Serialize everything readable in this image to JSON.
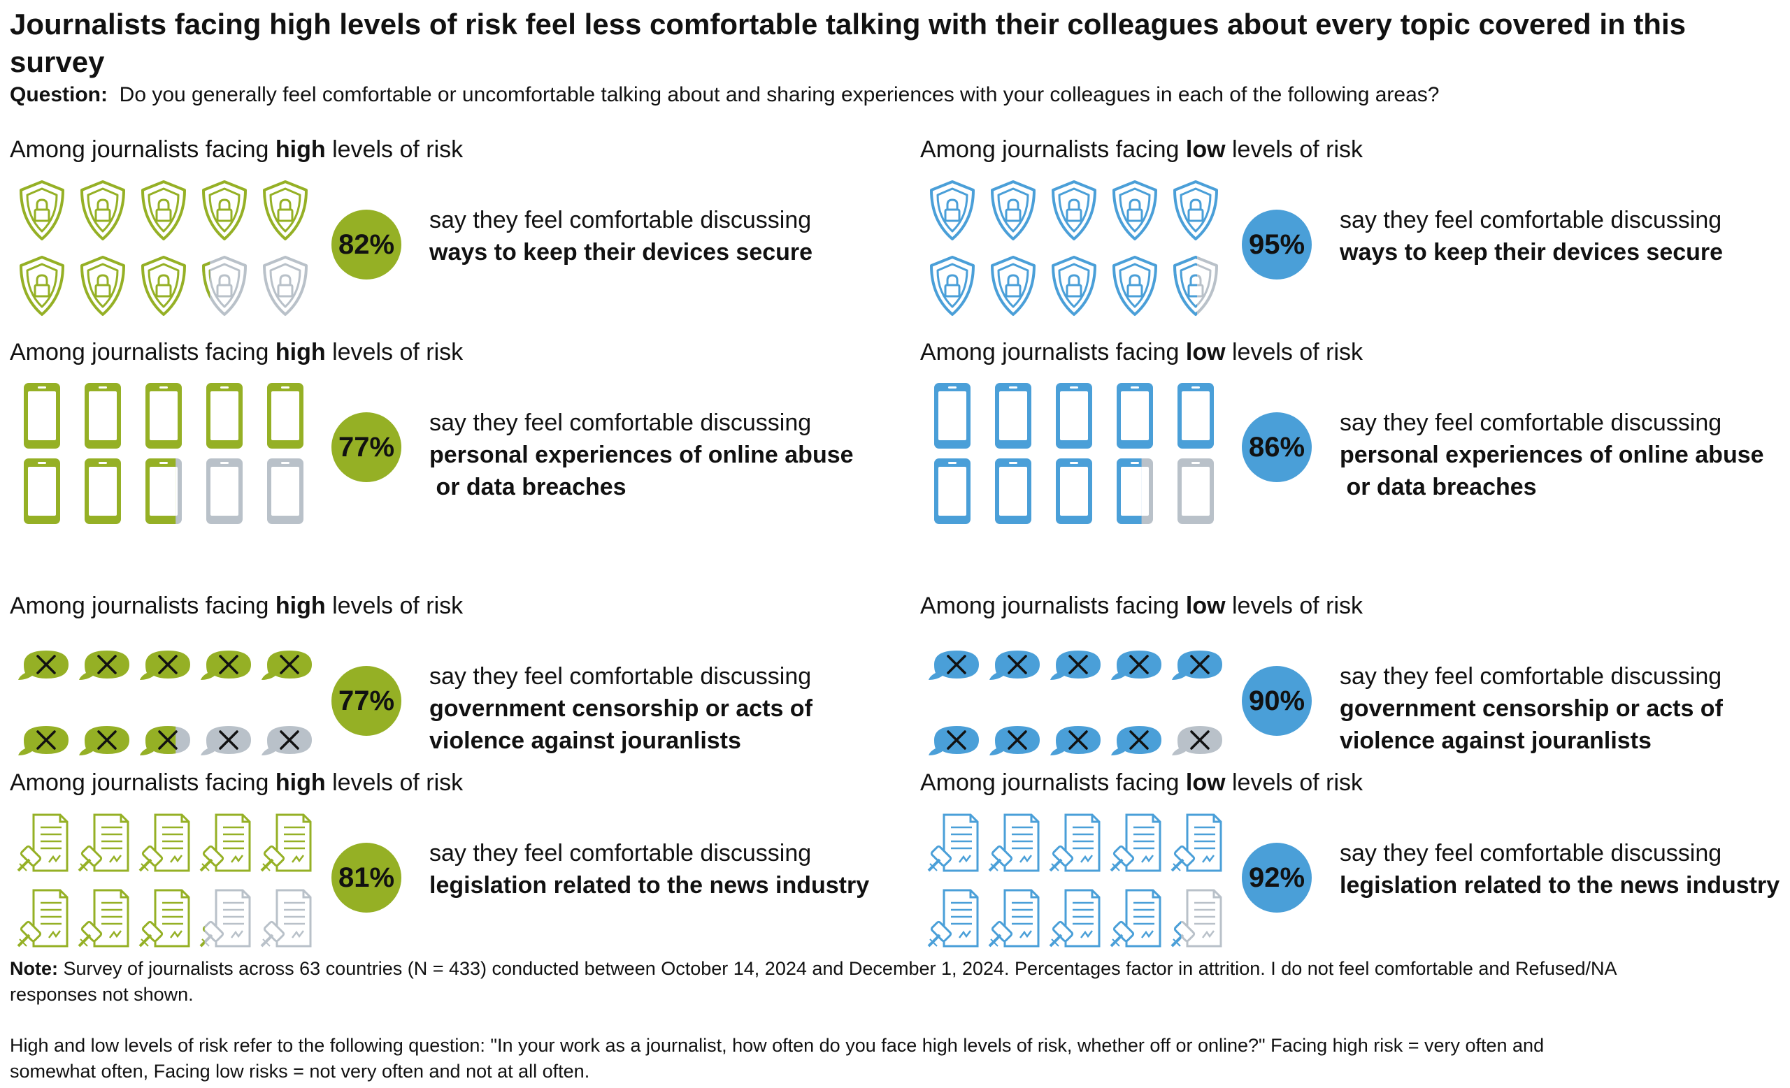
{
  "title": "Journalists facing high levels of risk feel less comfortable talking with their colleagues about every topic covered in this survey",
  "question": {
    "label": "Question:",
    "text": "Do you generally feel comfortable or uncomfortable talking about and sharing experiences with your colleagues in each of the following areas?"
  },
  "colors": {
    "high": "#95b025",
    "low": "#4a9fd8",
    "inactive": "#b9c1c9"
  },
  "chart_data": {
    "type": "pictogram",
    "icons_per_panel": 10,
    "panels": [
      {
        "group": "high",
        "head_prefix": "Among journalists facing",
        "head_bold": "high",
        "head_suffix": "levels of risk",
        "icon": "shield-lock-icon",
        "value": 82,
        "value_label": "82%",
        "lead": "say they feel comfortable discussing",
        "topic": "ways to keep their devices secure"
      },
      {
        "group": "low",
        "head_prefix": "Among journalists facing",
        "head_bold": "low",
        "head_suffix": "levels of risk",
        "icon": "shield-lock-icon",
        "value": 95,
        "value_label": "95%",
        "lead": "say they feel comfortable discussing",
        "topic": "ways to keep their devices secure"
      },
      {
        "group": "high",
        "head_prefix": "Among journalists facing",
        "head_bold": "high",
        "head_suffix": "levels of risk",
        "icon": "smartphone-icon",
        "value": 77,
        "value_label": "77%",
        "lead": "say they feel comfortable discussing",
        "topic": "personal experiences of online abuse\n or data breaches"
      },
      {
        "group": "low",
        "head_prefix": "Among journalists facing",
        "head_bold": "low",
        "head_suffix": "levels of risk",
        "icon": "smartphone-icon",
        "value": 86,
        "value_label": "86%",
        "lead": "say they feel comfortable discussing",
        "topic": "personal experiences of online abuse\n or data breaches"
      },
      {
        "group": "high",
        "head_prefix": "Among journalists facing",
        "head_bold": "high",
        "head_suffix": "levels of risk",
        "icon": "speech-bubble-x-icon",
        "value": 77,
        "value_label": "77%",
        "lead": "say they feel comfortable discussing",
        "topic": "government censorship or acts of\nviolence against jouranlists"
      },
      {
        "group": "low",
        "head_prefix": "Among journalists facing",
        "head_bold": "low",
        "head_suffix": "levels of risk",
        "icon": "speech-bubble-x-icon",
        "value": 90,
        "value_label": "90%",
        "lead": "say they feel comfortable discussing",
        "topic": "government censorship or acts of\nviolence against jouranlists"
      },
      {
        "group": "high",
        "head_prefix": "Among journalists facing",
        "head_bold": "high",
        "head_suffix": "levels of risk",
        "icon": "gavel-document-icon",
        "value": 81,
        "value_label": "81%",
        "lead": "say they feel comfortable discussing",
        "topic": "legislation related to the news industry"
      },
      {
        "group": "low",
        "head_prefix": "Among journalists facing",
        "head_bold": "low",
        "head_suffix": "levels of risk",
        "icon": "gavel-document-icon",
        "value": 92,
        "value_label": "92%",
        "lead": "say they feel comfortable discussing",
        "topic": "legislation related to the news industry"
      }
    ]
  },
  "note": {
    "label": "Note:",
    "text": "Survey of journalists across 63 countries (N = 433) conducted between October 14, 2024 and December 1, 2024. Percentages factor in attrition. I do not feel comfortable and Refused/NA responses not shown.",
    "text2": "High and low levels of risk refer to the following question: \"In your work as a journalist, how often do you face high levels of risk, whether off or online?\" Facing high risk = very often and somewhat often, Facing low risks = not very often and not at all often."
  }
}
